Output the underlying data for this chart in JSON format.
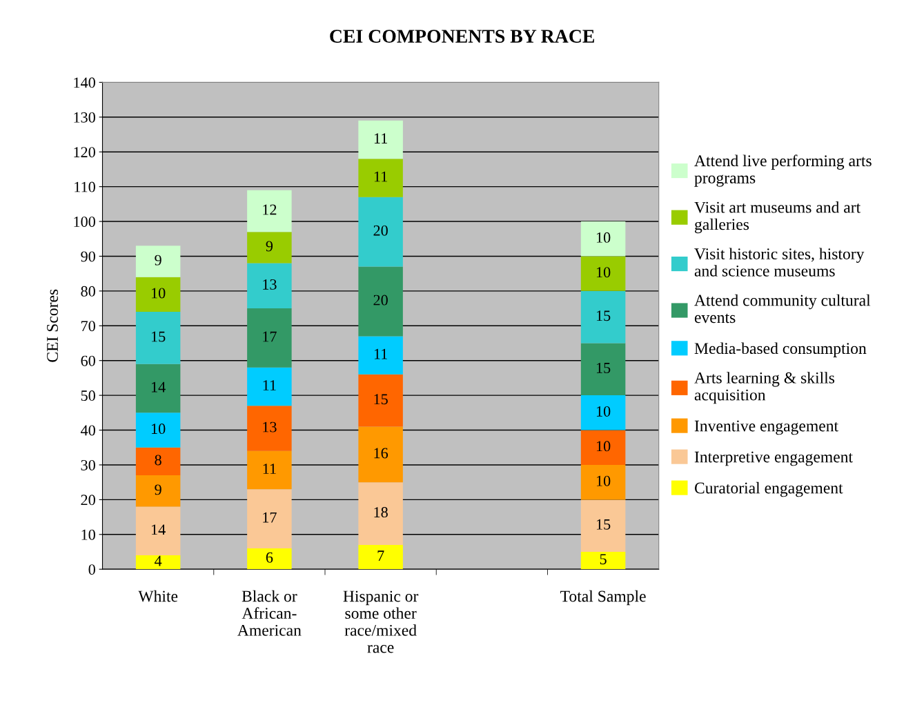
{
  "chart_data": {
    "type": "bar",
    "title": "CEI COMPONENTS BY RACE",
    "ylabel": "CEI Scores",
    "categories": [
      "White",
      "Black or African-American",
      "Hispanic or some other race/mixed race",
      null,
      "Total Sample"
    ],
    "stacked": true,
    "data_labels": true,
    "grid": "y",
    "legend": "right",
    "ylim": [
      0,
      140
    ],
    "yticks": [
      0,
      10,
      20,
      30,
      40,
      50,
      60,
      70,
      80,
      90,
      100,
      110,
      120,
      130,
      140
    ],
    "series": [
      {
        "name": "Curatorial engagement",
        "color": "#ffff00",
        "values": [
          4,
          6,
          7,
          null,
          5
        ]
      },
      {
        "name": "Interpretive engagement",
        "color": "#fac896",
        "values": [
          14,
          17,
          18,
          null,
          15
        ]
      },
      {
        "name": "Inventive engagement",
        "color": "#ff9900",
        "values": [
          9,
          11,
          16,
          null,
          10
        ]
      },
      {
        "name": "Arts learning & skills acquisition",
        "color": "#ff6600",
        "values": [
          8,
          13,
          15,
          null,
          10
        ]
      },
      {
        "name": "Media-based consumption",
        "color": "#00ccff",
        "values": [
          10,
          11,
          11,
          null,
          10
        ]
      },
      {
        "name": "Attend community cultural events",
        "color": "#339966",
        "values": [
          14,
          17,
          20,
          null,
          15
        ]
      },
      {
        "name": "Visit historic sites, history and science museums",
        "color": "#33cccc",
        "values": [
          15,
          13,
          20,
          null,
          15
        ]
      },
      {
        "name": "Visit art museums and art galleries",
        "color": "#99cc00",
        "values": [
          10,
          9,
          11,
          null,
          10
        ]
      },
      {
        "name": "Attend live performing arts programs",
        "color": "#ccffcc",
        "values": [
          9,
          12,
          11,
          null,
          10
        ]
      }
    ]
  }
}
